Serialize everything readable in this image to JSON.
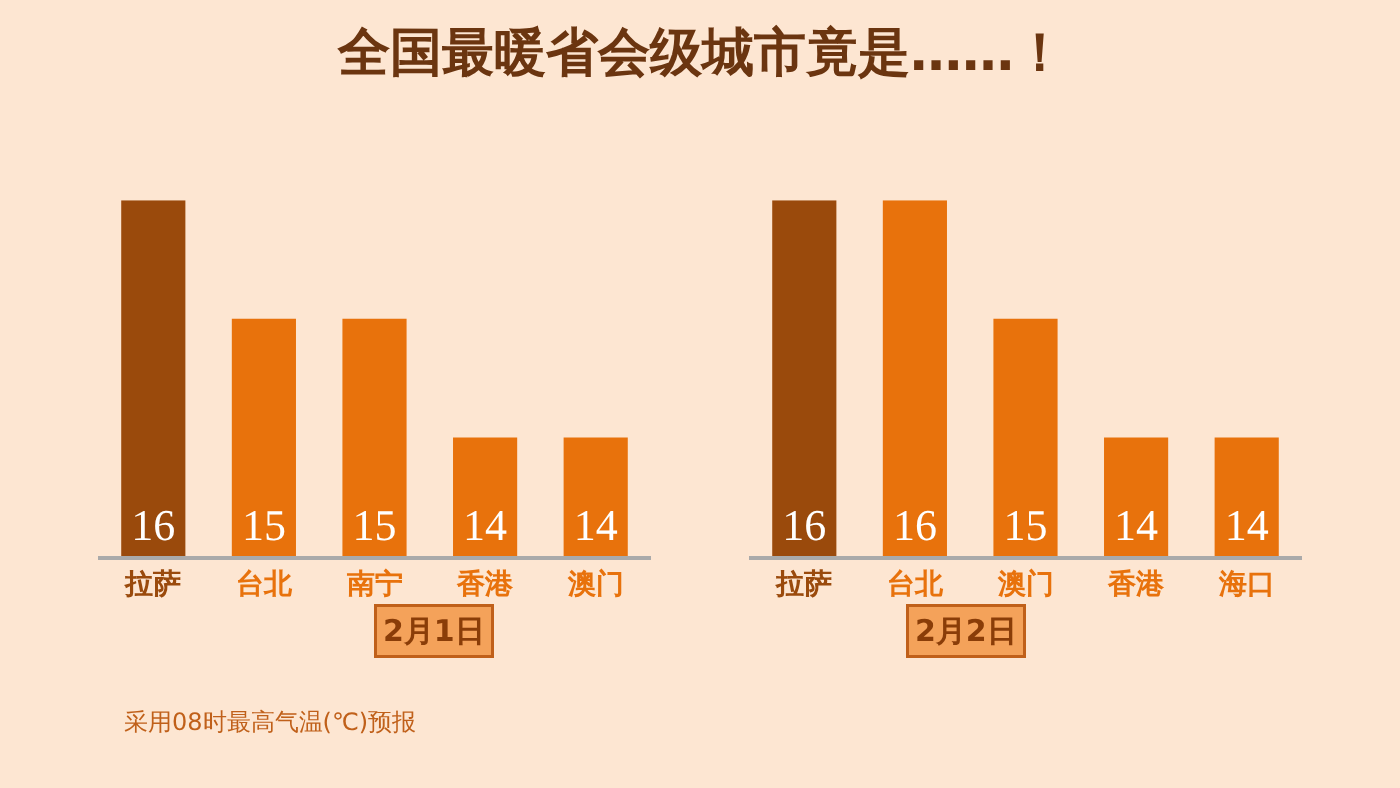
{
  "chart_data": [
    {
      "type": "bar",
      "title": "全国最暖省会级城市竟是……！",
      "xlabel": "2月1日",
      "categories": [
        "拉萨",
        "台北",
        "南宁",
        "香港",
        "澳门"
      ],
      "values": [
        16,
        15,
        15,
        14,
        14
      ],
      "colors": [
        "#9a4a0c",
        "#e8720c",
        "#e8720c",
        "#e8720c",
        "#e8720c"
      ],
      "ylim": [
        13,
        16
      ],
      "tick_labels": "x",
      "data_labels": true,
      "annotations": [
        "采用08时最高气温(℃)预报"
      ]
    },
    {
      "type": "bar",
      "xlabel": "2月2日",
      "categories": [
        "拉萨",
        "台北",
        "澳门",
        "香港",
        "海口"
      ],
      "values": [
        16,
        16,
        15,
        14,
        14
      ],
      "colors": [
        "#9a4a0c",
        "#e8720c",
        "#e8720c",
        "#e8720c",
        "#e8720c"
      ],
      "ylim": [
        13,
        16
      ],
      "tick_labels": "x",
      "data_labels": true
    }
  ]
}
